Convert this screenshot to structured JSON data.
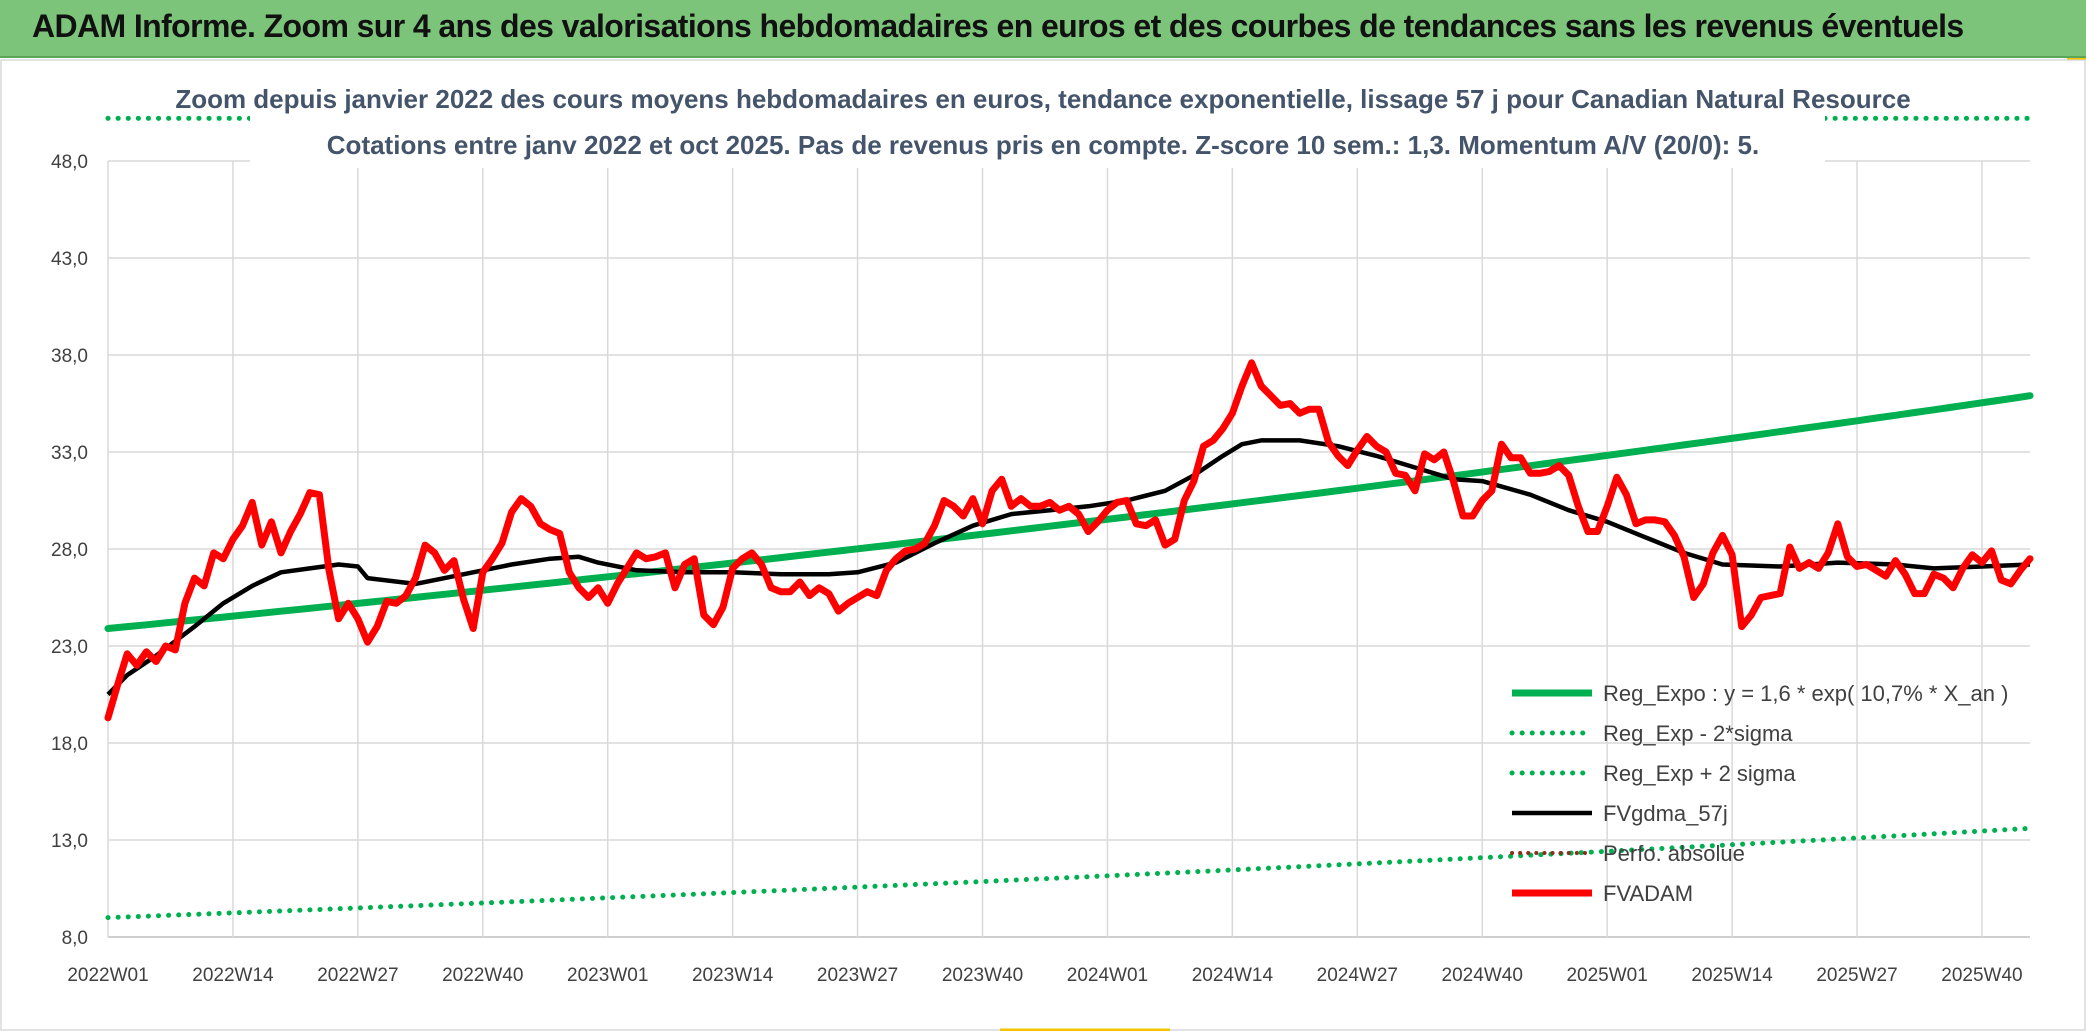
{
  "banner": {
    "title": "ADAM Informe. Zoom sur 4 ans des valorisations hebdomadaires en euros et des courbes de tendances sans les revenus éventuels"
  },
  "colors": {
    "banner": "#7cc47a",
    "reg_expo": "#00b050",
    "fvgdma": "#000000",
    "fvadam": "#ff0000",
    "perfo": "#8b2e1f"
  },
  "chart_data": {
    "type": "line",
    "title_line1": "Zoom depuis janvier 2022 des cours moyens hebdomadaires en euros, tendance exponentielle, lissage 57 j pour Canadian Natural Resource",
    "title_line2": "Cotations entre janv 2022 et oct 2025. Pas de revenus pris en compte. Z-score 10 sem.: 1,3. Momentum A/V (20/0): 5.",
    "ylim": [
      8,
      48
    ],
    "yticks": [
      "8,0",
      "13,0",
      "18,0",
      "23,0",
      "28,0",
      "33,0",
      "38,0",
      "43,0",
      "48,0"
    ],
    "x_labels": [
      "2022W01",
      "2022W14",
      "2022W27",
      "2022W40",
      "2023W01",
      "2023W14",
      "2023W27",
      "2023W40",
      "2024W01",
      "2024W14",
      "2024W27",
      "2024W40",
      "2025W01",
      "2025W14",
      "2025W27",
      "2025W40"
    ],
    "x_label_index": [
      0,
      13,
      26,
      39,
      52,
      65,
      78,
      91,
      104,
      117,
      130,
      143,
      156,
      169,
      182,
      195
    ],
    "n_points": 201,
    "legend": [
      "Reg_Expo : y = 1,6 * exp( 10,7% *  X_an )",
      "Reg_Exp - 2*sigma",
      "Reg_Exp + 2 sigma",
      "FVgdma_57j",
      "Perfo. absolue",
      "FVADAM"
    ],
    "series": [
      {
        "name": "Reg_Expo",
        "start": 23.9,
        "end": 35.9
      },
      {
        "name": "Reg_Exp - 2*sigma",
        "start": 9.0,
        "end": 13.6
      },
      {
        "name": "Reg_Exp + 2 sigma",
        "start": 50.2,
        "end": 50.2
      },
      {
        "name": "FVgdma_57j",
        "points": [
          [
            0,
            20.5
          ],
          [
            2,
            21.5
          ],
          [
            5,
            22.5
          ],
          [
            9,
            24.0
          ],
          [
            12,
            25.2
          ],
          [
            15,
            26.1
          ],
          [
            18,
            26.8
          ],
          [
            21,
            27.0
          ],
          [
            24,
            27.2
          ],
          [
            26,
            27.1
          ],
          [
            27,
            26.5
          ],
          [
            32,
            26.2
          ],
          [
            38,
            26.8
          ],
          [
            42,
            27.2
          ],
          [
            46,
            27.5
          ],
          [
            49,
            27.6
          ],
          [
            51,
            27.3
          ],
          [
            55,
            26.9
          ],
          [
            60,
            26.8
          ],
          [
            65,
            26.8
          ],
          [
            70,
            26.7
          ],
          [
            75,
            26.7
          ],
          [
            78,
            26.8
          ],
          [
            82,
            27.3
          ],
          [
            86,
            28.3
          ],
          [
            90,
            29.2
          ],
          [
            94,
            29.8
          ],
          [
            98,
            30.0
          ],
          [
            102,
            30.2
          ],
          [
            106,
            30.5
          ],
          [
            110,
            31.0
          ],
          [
            113,
            31.8
          ],
          [
            116,
            32.8
          ],
          [
            118,
            33.4
          ],
          [
            120,
            33.6
          ],
          [
            124,
            33.6
          ],
          [
            128,
            33.3
          ],
          [
            132,
            32.8
          ],
          [
            136,
            32.2
          ],
          [
            140,
            31.6
          ],
          [
            143,
            31.5
          ],
          [
            148,
            30.8
          ],
          [
            152,
            30.0
          ],
          [
            156,
            29.4
          ],
          [
            160,
            28.6
          ],
          [
            164,
            27.8
          ],
          [
            168,
            27.2
          ],
          [
            174,
            27.1
          ],
          [
            180,
            27.3
          ],
          [
            186,
            27.2
          ],
          [
            190,
            27.0
          ],
          [
            195,
            27.1
          ],
          [
            200,
            27.2
          ]
        ]
      },
      {
        "name": "FVADAM",
        "points": [
          [
            0,
            19.3
          ],
          [
            1,
            21.0
          ],
          [
            2,
            22.6
          ],
          [
            3,
            22.0
          ],
          [
            4,
            22.7
          ],
          [
            5,
            22.2
          ],
          [
            6,
            23.0
          ],
          [
            7,
            22.8
          ],
          [
            8,
            25.2
          ],
          [
            9,
            26.5
          ],
          [
            10,
            26.1
          ],
          [
            11,
            27.8
          ],
          [
            12,
            27.5
          ],
          [
            13,
            28.5
          ],
          [
            14,
            29.2
          ],
          [
            15,
            30.4
          ],
          [
            16,
            28.2
          ],
          [
            17,
            29.4
          ],
          [
            18,
            27.8
          ],
          [
            19,
            28.9
          ],
          [
            20,
            29.8
          ],
          [
            21,
            30.9
          ],
          [
            22,
            30.8
          ],
          [
            23,
            26.9
          ],
          [
            24,
            24.4
          ],
          [
            25,
            25.2
          ],
          [
            26,
            24.4
          ],
          [
            27,
            23.2
          ],
          [
            28,
            24.0
          ],
          [
            29,
            25.3
          ],
          [
            30,
            25.2
          ],
          [
            31,
            25.6
          ],
          [
            32,
            26.5
          ],
          [
            33,
            28.2
          ],
          [
            34,
            27.8
          ],
          [
            35,
            26.9
          ],
          [
            36,
            27.4
          ],
          [
            37,
            25.4
          ],
          [
            38,
            23.9
          ],
          [
            39,
            26.8
          ],
          [
            40,
            27.5
          ],
          [
            41,
            28.3
          ],
          [
            42,
            29.9
          ],
          [
            43,
            30.6
          ],
          [
            44,
            30.2
          ],
          [
            45,
            29.3
          ],
          [
            46,
            29.0
          ],
          [
            47,
            28.8
          ],
          [
            48,
            26.8
          ],
          [
            49,
            26.0
          ],
          [
            50,
            25.5
          ],
          [
            51,
            26.0
          ],
          [
            52,
            25.2
          ],
          [
            53,
            26.2
          ],
          [
            54,
            27.0
          ],
          [
            55,
            27.8
          ],
          [
            56,
            27.5
          ],
          [
            57,
            27.6
          ],
          [
            58,
            27.8
          ],
          [
            59,
            26.0
          ],
          [
            60,
            27.2
          ],
          [
            61,
            27.5
          ],
          [
            62,
            24.6
          ],
          [
            63,
            24.1
          ],
          [
            64,
            25.0
          ],
          [
            65,
            27.0
          ],
          [
            66,
            27.5
          ],
          [
            67,
            27.8
          ],
          [
            68,
            27.2
          ],
          [
            69,
            26.0
          ],
          [
            70,
            25.8
          ],
          [
            71,
            25.8
          ],
          [
            72,
            26.3
          ],
          [
            73,
            25.6
          ],
          [
            74,
            26.0
          ],
          [
            75,
            25.7
          ],
          [
            76,
            24.8
          ],
          [
            77,
            25.2
          ],
          [
            78,
            25.5
          ],
          [
            79,
            25.8
          ],
          [
            80,
            25.6
          ],
          [
            81,
            26.9
          ],
          [
            82,
            27.5
          ],
          [
            83,
            27.9
          ],
          [
            84,
            28.0
          ],
          [
            85,
            28.3
          ],
          [
            86,
            29.2
          ],
          [
            87,
            30.5
          ],
          [
            88,
            30.2
          ],
          [
            89,
            29.7
          ],
          [
            90,
            30.6
          ],
          [
            91,
            29.3
          ],
          [
            92,
            31.0
          ],
          [
            93,
            31.6
          ],
          [
            94,
            30.2
          ],
          [
            95,
            30.6
          ],
          [
            96,
            30.2
          ],
          [
            97,
            30.2
          ],
          [
            98,
            30.4
          ],
          [
            99,
            30.0
          ],
          [
            100,
            30.2
          ],
          [
            101,
            29.8
          ],
          [
            102,
            28.9
          ],
          [
            103,
            29.4
          ],
          [
            104,
            30.0
          ],
          [
            105,
            30.4
          ],
          [
            106,
            30.5
          ],
          [
            107,
            29.3
          ],
          [
            108,
            29.2
          ],
          [
            109,
            29.5
          ],
          [
            110,
            28.2
          ],
          [
            111,
            28.5
          ],
          [
            112,
            30.5
          ],
          [
            113,
            31.5
          ],
          [
            114,
            33.3
          ],
          [
            115,
            33.6
          ],
          [
            116,
            34.2
          ],
          [
            117,
            35.0
          ],
          [
            118,
            36.4
          ],
          [
            119,
            37.6
          ],
          [
            120,
            36.4
          ],
          [
            121,
            35.9
          ],
          [
            122,
            35.4
          ],
          [
            123,
            35.5
          ],
          [
            124,
            35.0
          ],
          [
            125,
            35.2
          ],
          [
            126,
            35.2
          ],
          [
            127,
            33.5
          ],
          [
            128,
            32.8
          ],
          [
            129,
            32.3
          ],
          [
            130,
            33.1
          ],
          [
            131,
            33.8
          ],
          [
            132,
            33.3
          ],
          [
            133,
            33.0
          ],
          [
            134,
            31.9
          ],
          [
            135,
            31.8
          ],
          [
            136,
            31.0
          ],
          [
            137,
            32.9
          ],
          [
            138,
            32.6
          ],
          [
            139,
            33.0
          ],
          [
            140,
            31.5
          ],
          [
            141,
            29.7
          ],
          [
            142,
            29.7
          ],
          [
            143,
            30.5
          ],
          [
            144,
            31.0
          ],
          [
            145,
            33.4
          ],
          [
            146,
            32.7
          ],
          [
            147,
            32.7
          ],
          [
            148,
            31.9
          ],
          [
            149,
            31.9
          ],
          [
            150,
            32.0
          ],
          [
            151,
            32.3
          ],
          [
            152,
            31.8
          ],
          [
            153,
            30.2
          ],
          [
            154,
            28.9
          ],
          [
            155,
            28.9
          ],
          [
            156,
            30.2
          ],
          [
            157,
            31.7
          ],
          [
            158,
            30.8
          ],
          [
            159,
            29.3
          ],
          [
            160,
            29.5
          ],
          [
            161,
            29.5
          ],
          [
            162,
            29.4
          ],
          [
            163,
            28.7
          ],
          [
            164,
            27.6
          ],
          [
            165,
            25.5
          ],
          [
            166,
            26.2
          ],
          [
            167,
            27.8
          ],
          [
            168,
            28.7
          ],
          [
            169,
            27.7
          ],
          [
            170,
            24.0
          ],
          [
            171,
            24.6
          ],
          [
            172,
            25.5
          ],
          [
            173,
            25.6
          ],
          [
            174,
            25.7
          ],
          [
            175,
            28.1
          ],
          [
            176,
            27.0
          ],
          [
            177,
            27.3
          ],
          [
            178,
            27.0
          ],
          [
            179,
            27.8
          ],
          [
            180,
            29.3
          ],
          [
            181,
            27.6
          ],
          [
            182,
            27.1
          ],
          [
            183,
            27.2
          ],
          [
            184,
            26.9
          ],
          [
            185,
            26.6
          ],
          [
            186,
            27.4
          ],
          [
            187,
            26.7
          ],
          [
            188,
            25.7
          ],
          [
            189,
            25.7
          ],
          [
            190,
            26.7
          ],
          [
            191,
            26.5
          ],
          [
            192,
            26.0
          ],
          [
            193,
            27.0
          ],
          [
            194,
            27.7
          ],
          [
            195,
            27.3
          ],
          [
            196,
            27.9
          ],
          [
            197,
            26.4
          ],
          [
            198,
            26.2
          ],
          [
            199,
            26.9
          ],
          [
            200,
            27.5
          ]
        ]
      }
    ]
  }
}
